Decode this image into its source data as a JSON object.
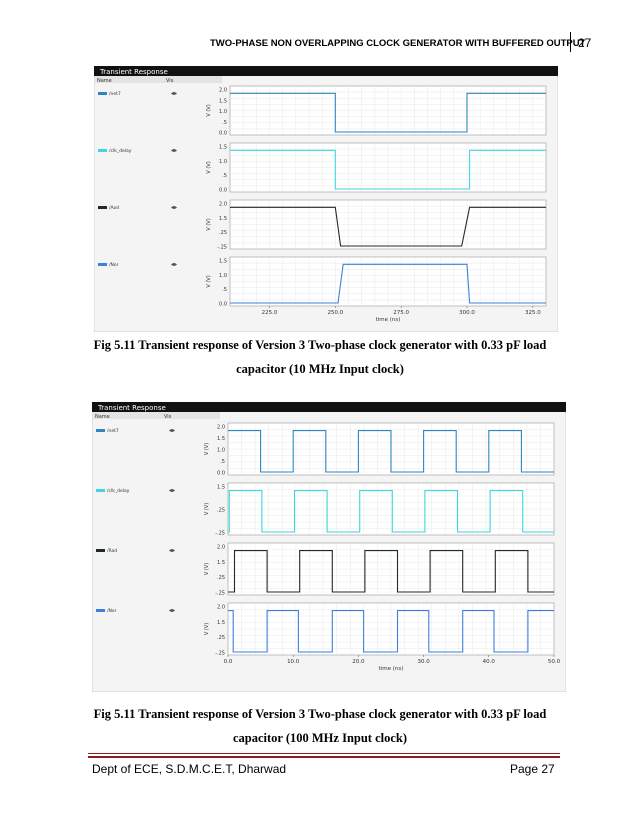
{
  "header": {
    "title": "TWO-PHASE NON OVERLAPPING CLOCK GENERATOR WITH BUFFERED OUTPUT",
    "page_number": "27"
  },
  "figure1": {
    "window_title": "Transient Response",
    "col_name": "Name",
    "col_vis": "Vis",
    "caption_line1": "Fig 5.11 Transient response of Version 3 Two-phase clock generator with 0.33 pF load",
    "caption_line2": "capacitor (10 MHz Input clock)"
  },
  "figure2": {
    "window_title": "Transient Response",
    "col_name": "Name",
    "col_vis": "Vis",
    "caption_line1": "Fig 5.11 Transient response of Version 3 Two-phase clock generator with 0.33 pF load",
    "caption_line2": "capacitor (100 MHz Input clock)"
  },
  "footer": {
    "left": "Dept of ECE, S.D.M.C.E.T, Dharwad",
    "right": "Page 27"
  },
  "chart_data": [
    {
      "type": "line",
      "title": "Transient Response",
      "xlabel": "time (ns)",
      "ylabel": "V (V)",
      "xlim": [
        210,
        330
      ],
      "x_ticks": [
        "225.0",
        "250.0",
        "275.0",
        "300.0",
        "325.0"
      ],
      "series": [
        {
          "name": "/net7",
          "color": "#2e86c1",
          "y_ticks": [
            "2.0",
            "1.5",
            "1.0",
            ".5",
            "0.0"
          ],
          "points": [
            [
              210,
              1.8
            ],
            [
              250,
              1.8
            ],
            [
              250,
              0
            ],
            [
              300,
              0
            ],
            [
              300,
              1.8
            ],
            [
              330,
              1.8
            ]
          ]
        },
        {
          "name": "/clk_delay",
          "color": "#3fd6e0",
          "y_ticks": [
            "1.5",
            "1.0",
            ".5",
            "0.0"
          ],
          "points": [
            [
              210,
              1.8
            ],
            [
              250,
              1.8
            ],
            [
              250,
              0
            ],
            [
              301,
              0
            ],
            [
              301,
              1.8
            ],
            [
              330,
              1.8
            ]
          ]
        },
        {
          "name": "/Aod",
          "color": "#1c2e1c",
          "y_ticks": [
            "2.0",
            "1.5",
            ".25",
            "-.25"
          ],
          "points": [
            [
              210,
              1.8
            ],
            [
              250,
              1.8
            ],
            [
              252,
              0
            ],
            [
              298,
              0
            ],
            [
              301,
              1.8
            ],
            [
              330,
              1.8
            ]
          ]
        },
        {
          "name": "/Nor",
          "color": "#3d7fe0",
          "y_ticks": [
            "1.5",
            "1.0",
            ".5",
            "0.0"
          ],
          "points": [
            [
              210,
              0
            ],
            [
              251,
              0
            ],
            [
              253,
              1.8
            ],
            [
              300,
              1.8
            ],
            [
              301,
              0
            ],
            [
              330,
              0
            ]
          ]
        }
      ]
    },
    {
      "type": "line",
      "title": "Transient Response",
      "xlabel": "time (ns)",
      "ylabel": "V (V)",
      "xlim": [
        0,
        50
      ],
      "x_ticks": [
        "0.0",
        "10.0",
        "20.0",
        "30.0",
        "40.0",
        "50.0"
      ],
      "series": [
        {
          "name": "/net7",
          "color": "#2e86c1",
          "y_ticks": [
            "2.0",
            "1.5",
            "1.0",
            ".5",
            "0.0"
          ],
          "period_ns": 10,
          "high_start_ns": 0,
          "high_end_ns": 5
        },
        {
          "name": "/clk_delay",
          "color": "#3fd6e0",
          "y_ticks": [
            "1.5",
            ".25",
            "-.25"
          ],
          "period_ns": 10,
          "high_start_ns": 0.2,
          "high_end_ns": 5.2
        },
        {
          "name": "/Rad",
          "color": "#1c2e1c",
          "y_ticks": [
            "2.0",
            "1.5",
            ".25",
            "-.25"
          ],
          "period_ns": 10,
          "high_start_ns": 1.0,
          "high_end_ns": 6.0
        },
        {
          "name": "/Nor",
          "color": "#3d7fe0",
          "y_ticks": [
            "2.0",
            "1.5",
            ".25",
            "-.25"
          ],
          "period_ns": 10,
          "high_start_ns": 6.0,
          "high_end_ns": 0.8
        }
      ]
    }
  ]
}
